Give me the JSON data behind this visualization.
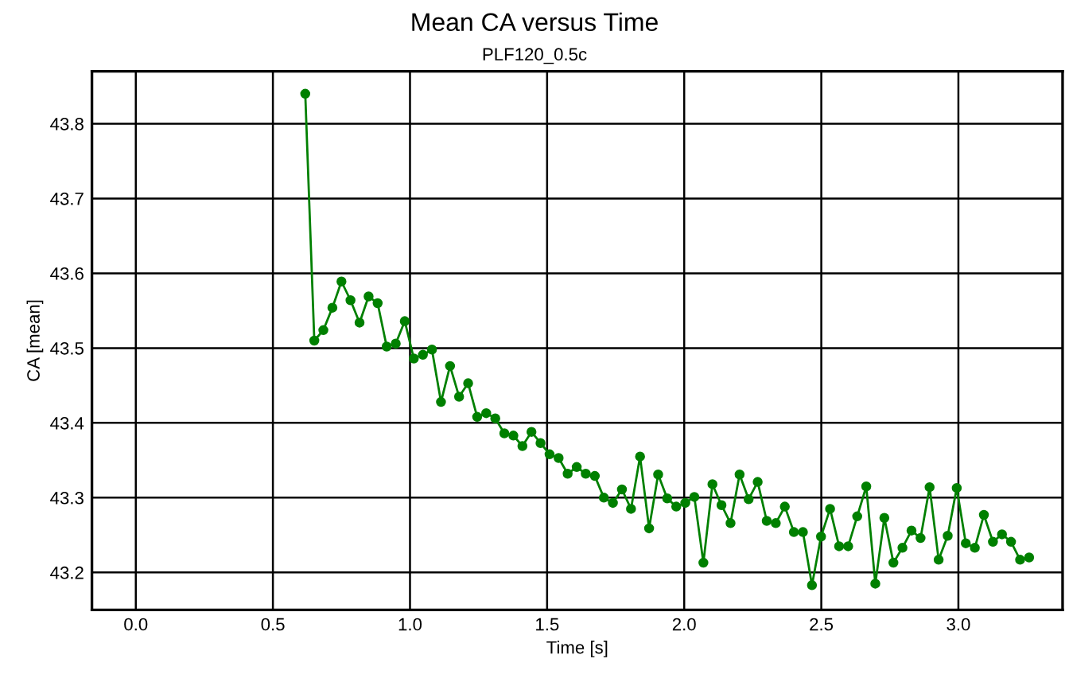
{
  "chart_data": {
    "type": "line",
    "title": "Mean CA versus Time",
    "subtitle": "PLF120_0.5c",
    "xlabel": "Time [s]",
    "ylabel": "CA [mean]",
    "x": [
      0.618,
      0.651,
      0.684,
      0.717,
      0.75,
      0.783,
      0.816,
      0.849,
      0.882,
      0.915,
      0.948,
      0.981,
      1.014,
      1.047,
      1.08,
      1.113,
      1.146,
      1.179,
      1.212,
      1.245,
      1.278,
      1.311,
      1.344,
      1.377,
      1.41,
      1.443,
      1.476,
      1.509,
      1.542,
      1.575,
      1.608,
      1.641,
      1.674,
      1.707,
      1.74,
      1.773,
      1.806,
      1.839,
      1.872,
      1.905,
      1.938,
      1.971,
      2.004,
      2.037,
      2.07,
      2.103,
      2.136,
      2.169,
      2.202,
      2.235,
      2.268,
      2.301,
      2.334,
      2.367,
      2.4,
      2.433,
      2.466,
      2.499,
      2.532,
      2.565,
      2.598,
      2.631,
      2.664,
      2.697,
      2.73,
      2.763,
      2.796,
      2.829,
      2.862,
      2.895,
      2.928,
      2.961,
      2.994,
      3.027,
      3.06,
      3.093,
      3.126,
      3.159,
      3.192,
      3.225,
      3.258
    ],
    "series": [
      {
        "color": "#008000",
        "values": [
          43.84,
          43.51,
          43.524,
          43.554,
          43.589,
          43.564,
          43.534,
          43.569,
          43.56,
          43.502,
          43.506,
          43.536,
          43.486,
          43.491,
          43.498,
          43.428,
          43.476,
          43.435,
          43.453,
          43.408,
          43.413,
          43.406,
          43.386,
          43.383,
          43.369,
          43.388,
          43.373,
          43.358,
          43.353,
          43.332,
          43.341,
          43.332,
          43.329,
          43.3,
          43.293,
          43.311,
          43.285,
          43.355,
          43.259,
          43.331,
          43.299,
          43.288,
          43.293,
          43.301,
          43.213,
          43.318,
          43.29,
          43.266,
          43.331,
          43.298,
          43.321,
          43.269,
          43.266,
          43.288,
          43.254,
          43.254,
          43.183,
          43.248,
          43.285,
          43.235,
          43.235,
          43.275,
          43.315,
          43.185,
          43.273,
          43.213,
          43.233,
          43.256,
          43.246,
          43.314,
          43.217,
          43.249,
          43.313,
          43.239,
          43.233,
          43.277,
          43.241,
          43.251,
          43.241,
          43.217,
          43.22
        ]
      }
    ],
    "xlim": [
      -0.16,
      3.38
    ],
    "ylim": [
      43.15,
      43.87
    ],
    "xticks": [
      {
        "value": 0,
        "label": "0.0"
      },
      {
        "value": 0.5,
        "label": "0.5"
      },
      {
        "value": 1,
        "label": "1.0"
      },
      {
        "value": 1.5,
        "label": "1.5"
      },
      {
        "value": 2,
        "label": "2.0"
      },
      {
        "value": 2.5,
        "label": "2.5"
      },
      {
        "value": 3,
        "label": "3.0"
      }
    ],
    "yticks": [
      43.2,
      43.3,
      43.4,
      43.5,
      43.6,
      43.7,
      43.8
    ],
    "grid": true,
    "marker": "circle",
    "line_style": "solid"
  }
}
